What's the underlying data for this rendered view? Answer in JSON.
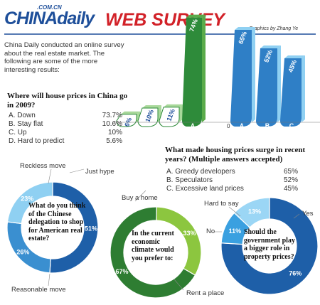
{
  "header": {
    "logo_suffix": ".COM.CN",
    "logo_text": "CHINAdaily",
    "title": "WEB SURVEY",
    "credit": "Graphics by Zhang Ye"
  },
  "intro": "China Daily conducted an online survey about the real estate market. The following are some of the more interesting results:",
  "colors": {
    "brand_blue": "#1e4f9a",
    "brand_red": "#d22128",
    "green": "#2e8b3a",
    "light_blue": "#8fd0f2",
    "mid_blue": "#2f7fc6"
  },
  "q1": {
    "title": "Where will house prices in China go in 2009?",
    "answers": [
      {
        "letter": "A",
        "label": "A. Down",
        "value": "73.7%",
        "num": 73.7
      },
      {
        "letter": "B",
        "label": "B. Stay flat",
        "value": "10.6%",
        "num": 10.6
      },
      {
        "letter": "C",
        "label": "C. Up",
        "value": "10%",
        "num": 10
      },
      {
        "letter": "D",
        "label": "D. Hard to predict",
        "value": "5.6%",
        "num": 5.6
      }
    ],
    "bar_labels": [
      "74%",
      "11%",
      "10%",
      "6%"
    ]
  },
  "axis_zero": "0",
  "q2": {
    "title": "What made housing prices surge in recent years? (Multiple answers accepted)",
    "answers": [
      {
        "letter": "A",
        "label": "A. Greedy developers",
        "value": "65%",
        "num": 65
      },
      {
        "letter": "B",
        "label": "B. Speculators",
        "value": "52%",
        "num": 52
      },
      {
        "letter": "C",
        "label": "C. Excessive land prices",
        "value": "45%",
        "num": 45
      }
    ]
  },
  "q3": {
    "question": "What do you think of the Chinese delegation to shop for American real estate?",
    "slices": [
      {
        "label": "Just hype",
        "value": "51%",
        "num": 51
      },
      {
        "label": "Reasonable move",
        "value": "26%",
        "num": 26
      },
      {
        "label": "Reckless move",
        "value": "23%",
        "num": 23
      }
    ]
  },
  "q4": {
    "question": "In the current economic climate would you prefer to:",
    "slices": [
      {
        "label": "Rent a place",
        "value": "67%",
        "num": 67
      },
      {
        "label": "Buy a home",
        "value": "33%",
        "num": 33
      }
    ]
  },
  "q5": {
    "question": "Should the government play a bigger role in property prices?",
    "slices": [
      {
        "label": "Yes",
        "value": "76%",
        "num": 76
      },
      {
        "label": "No",
        "value": "11%",
        "num": 11
      },
      {
        "label": "Hard to say",
        "value": "13%",
        "num": 13
      }
    ]
  }
}
